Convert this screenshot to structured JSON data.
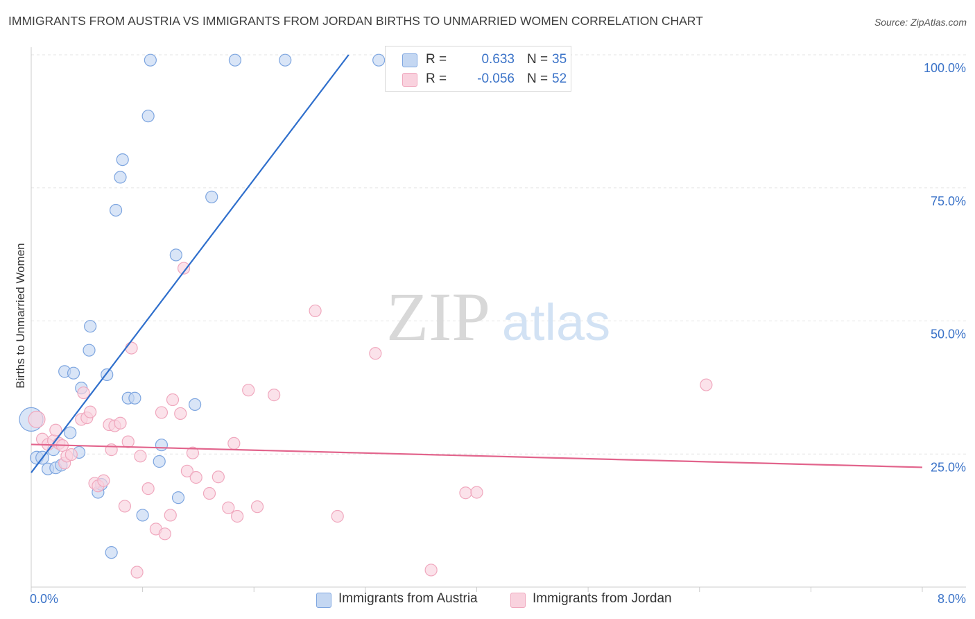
{
  "chart_data": {
    "type": "scatter",
    "title": "IMMIGRANTS FROM AUSTRIA VS IMMIGRANTS FROM JORDAN BIRTHS TO UNMARRIED WOMEN CORRELATION CHART",
    "source": "Source: ZipAtlas.com",
    "watermark_zip": "ZIP",
    "watermark_atlas": "atlas",
    "xlabel": "",
    "ylabel": "Births to Unmarried Women",
    "xlim": [
      0,
      8.0
    ],
    "ylim": [
      0,
      100
    ],
    "x_tick_labels": [
      {
        "value": 0,
        "label": "0.0%"
      },
      {
        "value": 8,
        "label": "8.0%"
      }
    ],
    "y_tick_labels": [
      {
        "value": 25,
        "label": "25.0%"
      },
      {
        "value": 50,
        "label": "50.0%"
      },
      {
        "value": 75,
        "label": "75.0%"
      },
      {
        "value": 100,
        "label": "100.0%"
      }
    ],
    "grid": true,
    "legend": {
      "position": "top-center",
      "entries": [
        {
          "r_label": "R =",
          "r_value": "0.633",
          "n_label": "N =",
          "n_value": "35"
        },
        {
          "r_label": "R =",
          "r_value": "-0.056",
          "n_label": "N =",
          "n_value": "52"
        }
      ]
    },
    "series": [
      {
        "name": "Immigrants from Austria",
        "color": "#7ea6e0",
        "fill": "#c4d7f2",
        "line_color": "#2f6fcc",
        "trend": {
          "x": [
            0.0,
            2.85
          ],
          "y": [
            21.5,
            100.0
          ]
        },
        "points": [
          [
            0.0,
            31.5,
            20
          ],
          [
            0.05,
            24.3,
            11
          ],
          [
            0.1,
            24.3,
            11
          ],
          [
            0.15,
            22.2,
            10
          ],
          [
            0.2,
            25.8,
            10
          ],
          [
            0.22,
            22.4,
            10
          ],
          [
            0.27,
            22.9,
            10
          ],
          [
            0.3,
            40.5,
            10
          ],
          [
            0.35,
            29.0,
            10
          ],
          [
            0.38,
            40.2,
            10
          ],
          [
            0.43,
            25.3,
            10
          ],
          [
            0.45,
            37.4,
            10
          ],
          [
            0.52,
            44.5,
            10
          ],
          [
            0.53,
            49.0,
            10
          ],
          [
            0.6,
            17.8,
            10
          ],
          [
            0.63,
            19.3,
            10
          ],
          [
            0.68,
            39.9,
            10
          ],
          [
            0.72,
            6.5,
            10
          ],
          [
            0.76,
            70.8,
            10
          ],
          [
            0.8,
            77.0,
            10
          ],
          [
            0.82,
            80.3,
            10
          ],
          [
            0.87,
            35.5,
            10
          ],
          [
            0.93,
            35.5,
            10
          ],
          [
            1.0,
            13.5,
            10
          ],
          [
            1.05,
            88.5,
            10
          ],
          [
            1.07,
            99.0,
            10
          ],
          [
            1.15,
            23.6,
            10
          ],
          [
            1.17,
            26.7,
            10
          ],
          [
            1.3,
            62.4,
            10
          ],
          [
            1.32,
            16.8,
            10
          ],
          [
            1.47,
            34.3,
            10
          ],
          [
            1.62,
            73.3,
            10
          ],
          [
            1.83,
            99.0,
            10
          ],
          [
            2.28,
            99.0,
            10
          ],
          [
            3.12,
            99.0,
            10
          ]
        ]
      },
      {
        "name": "Immigrants from Jordan",
        "color": "#f0a8be",
        "fill": "#f9d2de",
        "line_color": "#e2648c",
        "trend": {
          "x": [
            0.0,
            8.0
          ],
          "y": [
            26.8,
            22.5
          ]
        },
        "points": [
          [
            0.05,
            31.5,
            14
          ],
          [
            0.1,
            27.8,
            10
          ],
          [
            0.15,
            26.8,
            10
          ],
          [
            0.2,
            27.5,
            10
          ],
          [
            0.22,
            29.5,
            10
          ],
          [
            0.25,
            27.0,
            10
          ],
          [
            0.28,
            26.6,
            10
          ],
          [
            0.3,
            23.3,
            10
          ],
          [
            0.32,
            24.6,
            10
          ],
          [
            0.36,
            24.9,
            10
          ],
          [
            0.45,
            31.5,
            10
          ],
          [
            0.47,
            36.5,
            10
          ],
          [
            0.5,
            31.8,
            10
          ],
          [
            0.53,
            32.9,
            10
          ],
          [
            0.57,
            19.5,
            10
          ],
          [
            0.6,
            19.0,
            10
          ],
          [
            0.65,
            20.0,
            10
          ],
          [
            0.7,
            30.5,
            10
          ],
          [
            0.72,
            25.8,
            10
          ],
          [
            0.75,
            30.3,
            10
          ],
          [
            0.8,
            30.8,
            10
          ],
          [
            0.84,
            15.2,
            10
          ],
          [
            0.87,
            27.3,
            10
          ],
          [
            0.9,
            44.9,
            10
          ],
          [
            0.95,
            2.8,
            10
          ],
          [
            0.98,
            24.6,
            10
          ],
          [
            1.05,
            18.5,
            10
          ],
          [
            1.12,
            10.9,
            10
          ],
          [
            1.17,
            32.8,
            10
          ],
          [
            1.2,
            10.0,
            10
          ],
          [
            1.25,
            13.5,
            10
          ],
          [
            1.27,
            35.2,
            10
          ],
          [
            1.34,
            32.6,
            10
          ],
          [
            1.37,
            59.9,
            10
          ],
          [
            1.4,
            21.8,
            10
          ],
          [
            1.45,
            25.2,
            10
          ],
          [
            1.48,
            20.6,
            10
          ],
          [
            1.6,
            17.6,
            10
          ],
          [
            1.68,
            20.7,
            10
          ],
          [
            1.77,
            14.9,
            10
          ],
          [
            1.82,
            27.0,
            10
          ],
          [
            1.85,
            13.3,
            10
          ],
          [
            1.95,
            37.0,
            10
          ],
          [
            2.03,
            15.1,
            10
          ],
          [
            2.18,
            36.1,
            10
          ],
          [
            2.55,
            51.9,
            10
          ],
          [
            2.75,
            13.3,
            10
          ],
          [
            3.09,
            43.9,
            10
          ],
          [
            3.59,
            3.2,
            10
          ],
          [
            3.9,
            17.7,
            10
          ],
          [
            4.0,
            17.8,
            10
          ],
          [
            6.06,
            38.0,
            10
          ]
        ]
      }
    ]
  }
}
